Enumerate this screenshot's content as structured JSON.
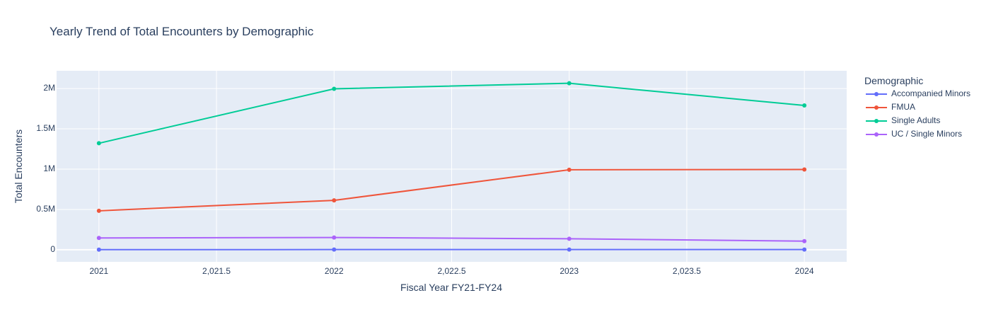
{
  "chart_data": {
    "type": "line",
    "title": "Yearly Trend of Total Encounters by Demographic",
    "xlabel": "Fiscal Year FY21-FY24",
    "ylabel": "Total Encounters",
    "x": [
      2021,
      2022,
      2023,
      2024
    ],
    "xlim": [
      2020.82,
      2024.18
    ],
    "ylim": [
      -150000,
      2220000
    ],
    "x_ticks": [
      2021,
      2021.5,
      2022,
      2022.5,
      2023,
      2023.5,
      2024
    ],
    "x_tick_labels": [
      "2021",
      "2,021.5",
      "2022",
      "2,022.5",
      "2023",
      "2,023.5",
      "2024"
    ],
    "y_ticks": [
      0,
      500000,
      1000000,
      1500000,
      2000000
    ],
    "y_tick_labels": [
      "0",
      "0.5M",
      "1M",
      "1.5M",
      "2M"
    ],
    "grid": true,
    "legend_title": "Demographic",
    "legend_position": "right",
    "series": [
      {
        "name": "Accompanied Minors",
        "color": "#636efa",
        "values": [
          1000,
          2000,
          3000,
          3000
        ]
      },
      {
        "name": "FMUA",
        "color": "#ef553b",
        "values": [
          483000,
          613000,
          992000,
          995000
        ]
      },
      {
        "name": "Single Adults",
        "color": "#00cc96",
        "values": [
          1321000,
          1996000,
          2065000,
          1790000
        ]
      },
      {
        "name": "UC / Single Minors",
        "color": "#ab63fa",
        "values": [
          146000,
          152000,
          136000,
          107000
        ]
      }
    ]
  },
  "colors": {
    "plot_background": "#e5ecf6",
    "grid": "#ffffff",
    "text": "#2a3f5f"
  }
}
